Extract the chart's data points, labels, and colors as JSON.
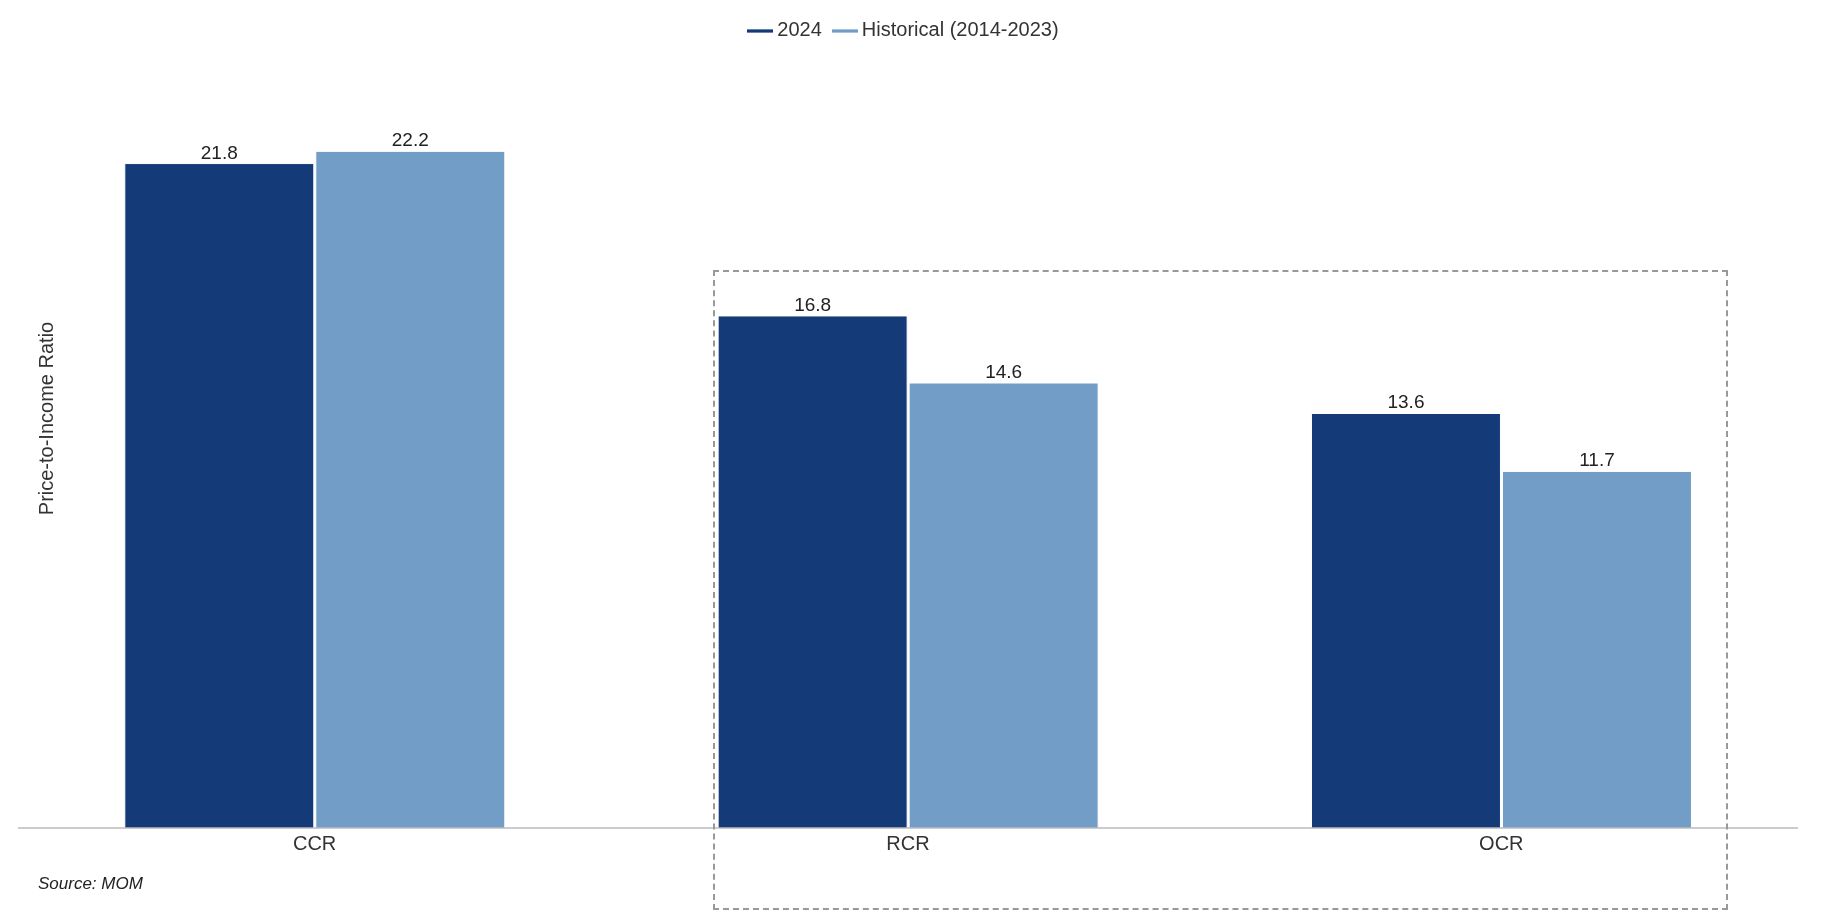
{
  "chart_data": {
    "type": "bar",
    "ylabel": "Price-to-Income Ratio",
    "categories": [
      "CCR",
      "RCR",
      "OCR"
    ],
    "series": [
      {
        "name": "2024",
        "color": "#143a78",
        "values": [
          21.8,
          16.8,
          13.6
        ]
      },
      {
        "name": "Historical (2014-2023)",
        "color": "#729dc7",
        "values": [
          22.2,
          14.6,
          11.7
        ]
      }
    ],
    "data_labels": true,
    "legend": "top",
    "tick_labels": "x",
    "annotations": [
      "Source: MOM"
    ]
  }
}
